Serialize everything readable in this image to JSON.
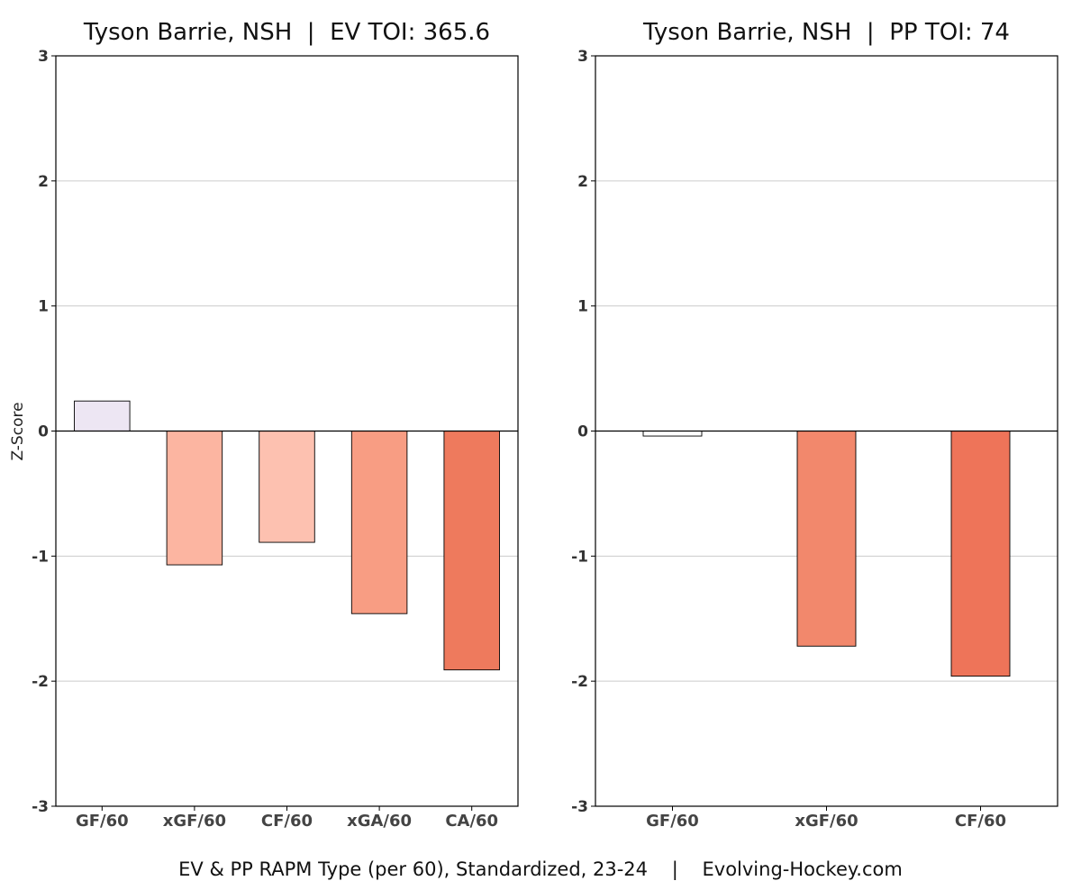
{
  "chart_data": [
    {
      "type": "bar",
      "title": "Tyson Barrie, NSH  |  EV TOI: 365.6",
      "ylabel": "Z-Score",
      "ylim": [
        -3,
        3
      ],
      "yticks": [
        "-3",
        "-2",
        "-1",
        "0",
        "1",
        "2",
        "3"
      ],
      "grid": true,
      "categories": [
        "GF/60",
        "xGF/60",
        "CF/60",
        "xGA/60",
        "CA/60"
      ],
      "values": [
        0.24,
        -1.07,
        -0.89,
        -1.46,
        -1.91
      ],
      "colors": [
        "#ede6f3",
        "#fcb5a1",
        "#fdc1b0",
        "#f89d83",
        "#ee7a5d"
      ]
    },
    {
      "type": "bar",
      "title": "Tyson Barrie, NSH  |  PP TOI: 74",
      "ylabel": "",
      "ylim": [
        -3,
        3
      ],
      "yticks": [
        "-3",
        "-2",
        "-1",
        "0",
        "1",
        "2",
        "3"
      ],
      "grid": true,
      "categories": [
        "GF/60",
        "xGF/60",
        "CF/60"
      ],
      "values": [
        -0.04,
        -1.72,
        -1.96
      ],
      "colors": [
        "#ffffff",
        "#f2886c",
        "#ee7459"
      ]
    }
  ],
  "caption": "EV & PP RAPM Type (per 60), Standardized, 23-24    |    Evolving-Hockey.com"
}
